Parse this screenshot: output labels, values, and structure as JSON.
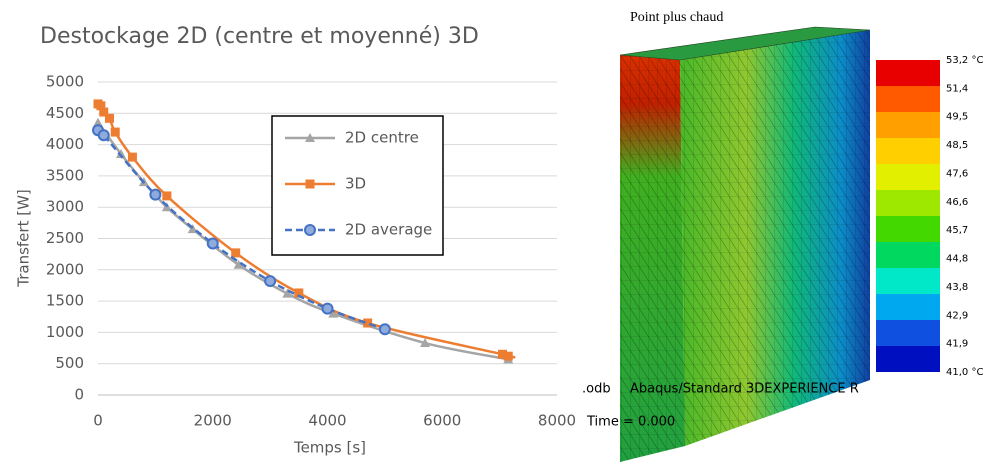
{
  "chart_data": {
    "type": "line",
    "title": "Destockage 2D (centre et moyenné) 3D",
    "x_label": "Temps [s]",
    "y_label": "Transfert [W]",
    "xlim": [
      0,
      8000
    ],
    "xticks": [
      0,
      2000,
      4000,
      6000,
      8000
    ],
    "ylim": [
      0,
      5000
    ],
    "yticks": [
      0,
      500,
      1000,
      1500,
      2000,
      2500,
      3000,
      3500,
      4000,
      4500,
      5000
    ],
    "grid": true,
    "series": [
      {
        "name": "2D centre",
        "color": "#a5a5a5",
        "marker": "triangle",
        "dash": false,
        "x": [
          0,
          400,
          800,
          1200,
          1650,
          2450,
          3300,
          4100,
          5700,
          7150
        ],
        "values": [
          4350,
          3850,
          3400,
          3000,
          2650,
          2080,
          1620,
          1300,
          830,
          570
        ]
      },
      {
        "name": "3D",
        "color": "#ed7d31",
        "marker": "square",
        "dash": false,
        "x": [
          0,
          50,
          100,
          200,
          300,
          600,
          1200,
          2400,
          3500,
          4700,
          7050,
          7150
        ],
        "values": [
          4650,
          4620,
          4520,
          4420,
          4200,
          3800,
          3180,
          2270,
          1630,
          1150,
          650,
          620
        ]
      },
      {
        "name": "2D average",
        "color": "#4472c4",
        "marker": "circle",
        "dash": true,
        "x": [
          0,
          100,
          1000,
          2000,
          3000,
          4000,
          5000
        ],
        "values": [
          4230,
          4150,
          3200,
          2420,
          1820,
          1380,
          1050
        ]
      }
    ]
  },
  "simulation": {
    "title": "Point plus chaud",
    "legend_labels": [
      "53,2 °C",
      "51,4",
      "49,5",
      "48,5",
      "47,6",
      "46,6",
      "45,7",
      "44,8",
      "43,8",
      "42,9",
      "41,9",
      "41,0 °C"
    ],
    "colors": [
      "#e80000",
      "#ff5a00",
      "#ffa000",
      "#ffcf00",
      "#e2f000",
      "#9ee800",
      "#42d800",
      "#00d860",
      "#00e8c8",
      "#00a8f0",
      "#1050e0",
      "#0010c0"
    ],
    "odb_text": ".odb",
    "solver_text": "Abaqus/Standard 3DEXPERIENCE R",
    "time_text": "Time =    0.000"
  }
}
